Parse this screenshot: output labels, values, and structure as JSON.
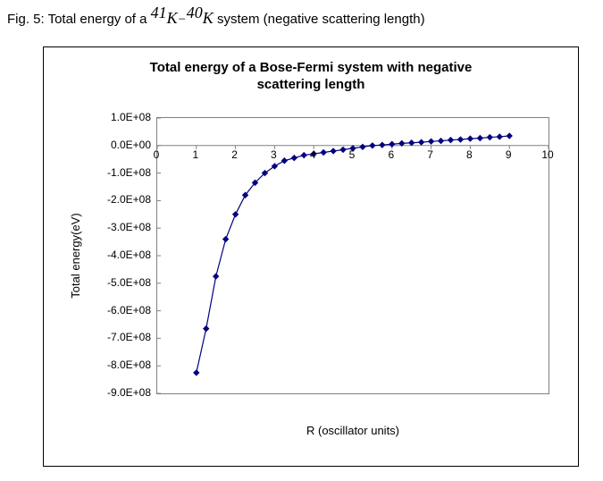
{
  "caption": {
    "prefix": "Fig. 5: Total energy of a ",
    "sup1": "41",
    "K1": "K",
    "dash": "−",
    "sup2": "40",
    "K2": "K",
    "suffix": "  system (negative scattering length)"
  },
  "chart": {
    "type": "line-scatter",
    "title_line1": "Total energy of a Bose-Fermi system with negative",
    "title_line2": "scattering length",
    "x_label": "R (oscillator units)",
    "y_label": "Total energy(eV)",
    "xlim": [
      0,
      10
    ],
    "ylim": [
      -900000000.0,
      100000000.0
    ],
    "x_ticks": [
      0,
      1,
      2,
      3,
      4,
      5,
      6,
      7,
      8,
      9,
      10
    ],
    "x_tick_labels": [
      "0",
      "1",
      "2",
      "3",
      "4",
      "5",
      "6",
      "7",
      "8",
      "9",
      "10"
    ],
    "y_ticks": [
      100000000.0,
      0.0,
      -100000000.0,
      -200000000.0,
      -300000000.0,
      -400000000.0,
      -500000000.0,
      -600000000.0,
      -700000000.0,
      -800000000.0,
      -900000000.0
    ],
    "y_tick_labels": [
      "1.0E+08",
      "0.0E+00",
      "-1.0E+08",
      "-2.0E+08",
      "-3.0E+08",
      "-4.0E+08",
      "-5.0E+08",
      "-6.0E+08",
      "-7.0E+08",
      "-8.0E+08",
      "-9.0E+08"
    ],
    "series": {
      "color": "#000080",
      "line_width": 1.2,
      "marker": "diamond",
      "marker_size": 6,
      "points": [
        [
          1.0,
          -825000000.0
        ],
        [
          1.25,
          -665000000.0
        ],
        [
          1.5,
          -475000000.0
        ],
        [
          1.75,
          -340000000.0
        ],
        [
          2.0,
          -250000000.0
        ],
        [
          2.25,
          -180000000.0
        ],
        [
          2.5,
          -135000000.0
        ],
        [
          2.75,
          -100000000.0
        ],
        [
          3.0,
          -75000000.0
        ],
        [
          3.25,
          -55000000.0
        ],
        [
          3.5,
          -45000000.0
        ],
        [
          3.75,
          -35000000.0
        ],
        [
          4.0,
          -30000000.0
        ],
        [
          4.25,
          -25000000.0
        ],
        [
          4.5,
          -20000000.0
        ],
        [
          4.75,
          -15000000.0
        ],
        [
          5.0,
          -10000000.0
        ],
        [
          5.25,
          -5000000.0
        ],
        [
          5.5,
          0.0
        ],
        [
          5.75,
          2000000.0
        ],
        [
          6.0,
          5000000.0
        ],
        [
          6.25,
          8000000.0
        ],
        [
          6.5,
          10000000.0
        ],
        [
          6.75,
          12000000.0
        ],
        [
          7.0,
          15000000.0
        ],
        [
          7.25,
          17000000.0
        ],
        [
          7.5,
          20000000.0
        ],
        [
          7.75,
          22000000.0
        ],
        [
          8.0,
          25000000.0
        ],
        [
          8.25,
          27000000.0
        ],
        [
          8.5,
          30000000.0
        ],
        [
          8.75,
          32000000.0
        ],
        [
          9.0,
          35000000.0
        ]
      ]
    },
    "background_color": "#ffffff",
    "border_color": "#808080",
    "outer_border_color": "#000000",
    "axis_zero_line_color": "#808080",
    "tick_font_size": 12,
    "label_font_size": 13,
    "title_font_size": 15,
    "title_font_weight": "bold"
  }
}
